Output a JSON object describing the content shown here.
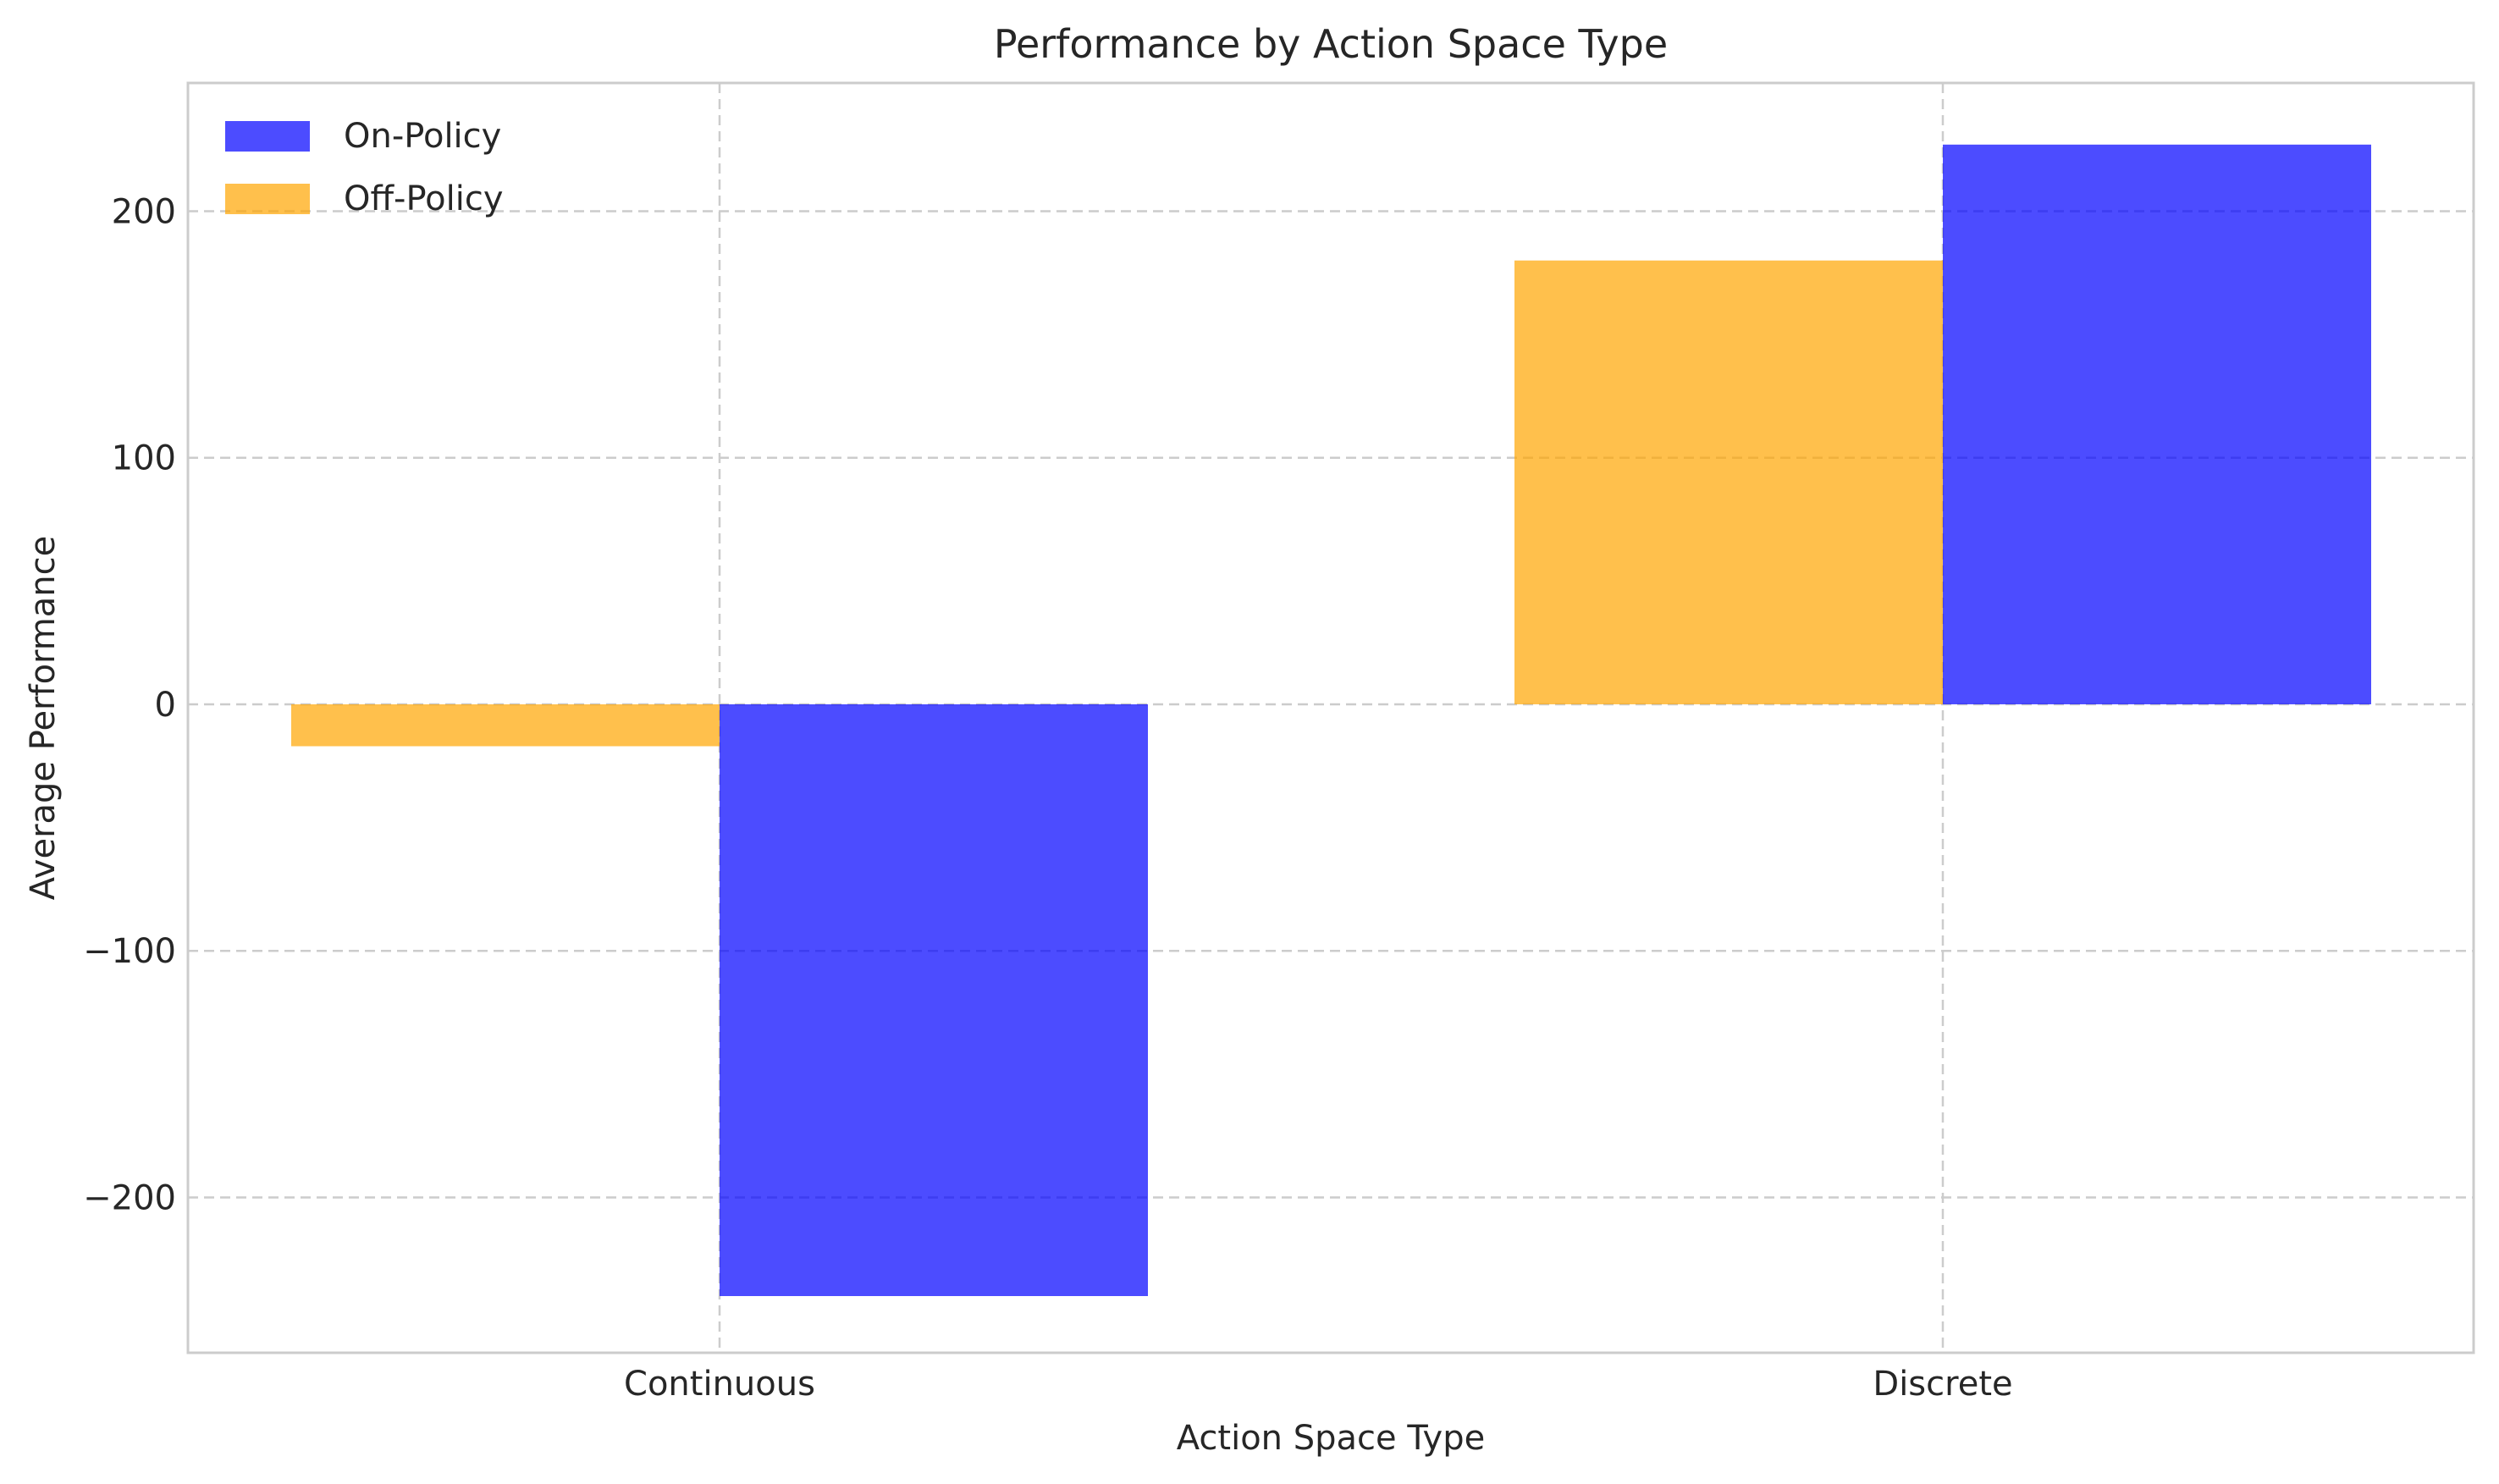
{
  "chart_data": {
    "type": "bar",
    "title": "Performance by Action Space Type",
    "xlabel": "Action Space Type",
    "ylabel": "Average Performance",
    "categories": [
      "Continuous",
      "Discrete"
    ],
    "series": [
      {
        "name": "On-Policy",
        "values": [
          -240,
          227
        ],
        "color": "#0000ff",
        "opacity": 0.7,
        "side": "right"
      },
      {
        "name": "Off-Policy",
        "values": [
          -17,
          180
        ],
        "color": "#ffa500",
        "opacity": 0.7,
        "side": "left"
      }
    ],
    "ylim": [
      -263,
      252
    ],
    "yticks": [
      -200,
      -100,
      0,
      100,
      200
    ],
    "ytick_labels": [
      "−200",
      "−100",
      "0",
      "100",
      "200"
    ],
    "grid": true,
    "legend_position": "top-left"
  }
}
